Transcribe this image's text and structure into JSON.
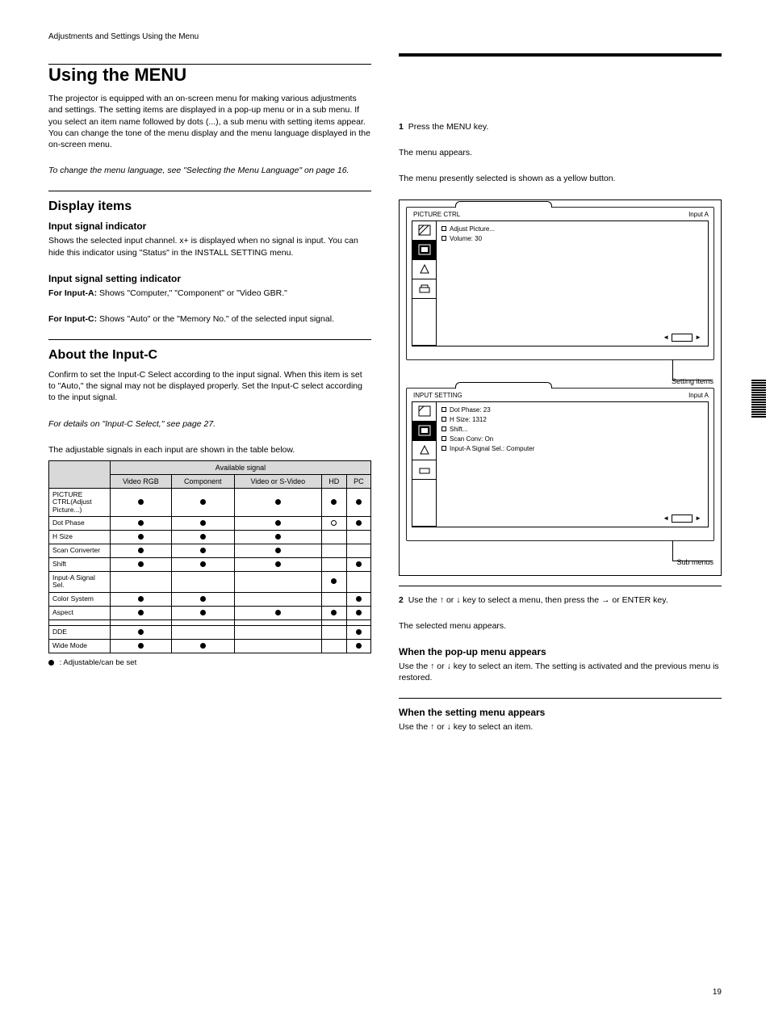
{
  "page_number": "19",
  "left": {
    "section_label": "Adjustments and Settings Using the Menu",
    "title": "Using the MENU",
    "intro": "The projector is equipped with an on-screen menu for making various adjustments and settings. The setting items are displayed in a pop-up menu or in a sub menu. If you select an item name followed by dots (...), a sub menu with setting items appear. You can change the tone of the menu display and the menu language displayed in the on-screen menu.",
    "intro_ref": "To change the menu language, see \"Selecting the Menu Language\" on page 16.",
    "display_items_title": "Display items",
    "input_signal_label": "Input signal indicator",
    "input_signal_body": "Shows the selected input channel. x+ is displayed when no signal is input. You can hide this indicator using \"Status\" in the INSTALL SETTING menu.",
    "setting_indicator_label": "Input signal setting indicator",
    "setting_indicator_body_a": "Shows \"Computer,\" \"Component\" or \"Video GBR.\"",
    "setting_indicator_body_b": "Shows \"Auto\" or the \"Memory No.\" of the selected input signal.",
    "for_input_a": "For Input-A:",
    "for_input_c": "For Input-C:",
    "about_title": "About the Input-C",
    "about_body": "Confirm to set the Input-C Select according to the input signal. When this item is set to \"Auto,\" the signal may not be displayed properly. Set the Input-C select according to the input signal.",
    "about_ref": "For details on \"Input-C Select,\" see page 27.",
    "table_intro": "The adjustable signals in each input are shown in the table below.",
    "table": {
      "header_top": "Available signal",
      "columns": [
        "Video RGB",
        "Component",
        "Video or S-Video",
        "HD",
        "PC"
      ],
      "rows": [
        {
          "label": "PICTURE CTRL(Adjust Picture...)",
          "cells": [
            "dot",
            "dot",
            "dot",
            "dot",
            "dot"
          ]
        },
        {
          "label": "Dot Phase",
          "cells": [
            "dot",
            "dot",
            "dot",
            "open",
            "dot"
          ]
        },
        {
          "label": "H Size",
          "cells": [
            "dot",
            "dot",
            "dot",
            "",
            ""
          ]
        },
        {
          "label": "Scan Converter",
          "cells": [
            "dot",
            "dot",
            "dot",
            "",
            ""
          ]
        },
        {
          "label": "Shift",
          "cells": [
            "dot",
            "dot",
            "dot",
            "",
            "dot"
          ]
        },
        {
          "label": "Input-A Signal Sel.",
          "cells": [
            "",
            "",
            "",
            "dot",
            ""
          ]
        },
        {
          "label": "Color System",
          "cells": [
            "dot",
            "dot",
            "",
            "",
            "dot"
          ]
        },
        {
          "label": "Aspect",
          "cells": [
            "dot",
            "dot",
            "dot",
            "dot",
            "dot"
          ]
        },
        {
          "label": "",
          "cells": [
            "",
            "",
            "",
            "",
            ""
          ]
        },
        {
          "label": "DDE",
          "cells": [
            "dot",
            "",
            "",
            "",
            "dot"
          ]
        },
        {
          "label": "Wide Mode",
          "cells": [
            "dot",
            "dot",
            "",
            "",
            "dot"
          ]
        }
      ],
      "legend": ": Adjustable/can be set"
    }
  },
  "right": {
    "step1": {
      "num": "1",
      "text": "Press the MENU key.",
      "after": "The menu appears.",
      "after2": "The menu presently selected is shown as a yellow button."
    },
    "screen1": {
      "title_left": "PICTURE CTRL",
      "title_right": "Input A",
      "items": [
        "Adjust Picture...",
        "Volume:            30"
      ],
      "page_caption": "Setting items"
    },
    "step2": {
      "num": "2",
      "text": "Use the ↑ or ↓ key to select a menu, then press the → or ENTER key.",
      "after": "The selected menu appears."
    },
    "screen2": {
      "title_left": "INPUT SETTING",
      "title_right": "Input A",
      "items": [
        "Dot Phase:   23",
        "H Size: 1312",
        "Shift...",
        "Scan Conv:   On",
        "Input-A Signal Sel.: Computer"
      ],
      "page_caption": "Sub menus"
    },
    "tip1_title": "When the pop-up menu appears",
    "tip1_body": "Use the ↑ or ↓ key to select an item. The setting is activated and the previous menu is restored.",
    "tip2_title": "When the setting menu appears",
    "tip2_body": "Use the ↑ or ↓ key to select an item."
  },
  "colors": {
    "header_bg": "#d9d9d9",
    "border": "#000000"
  }
}
